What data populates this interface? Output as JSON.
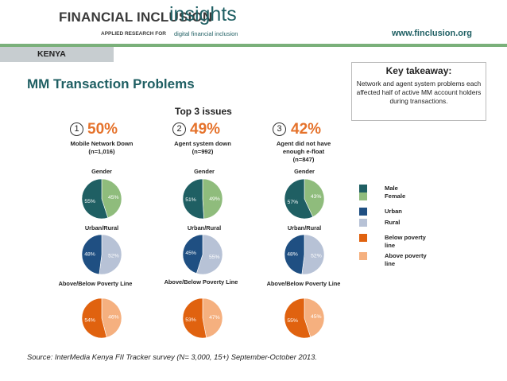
{
  "header": {
    "brand_main": "FINANCIAL INCLUSION",
    "brand_insights": "insights",
    "brand_sub1": "APPLIED RESEARCH FOR",
    "brand_sub2": "digital financial inclusion",
    "url": "www.finclusion.org"
  },
  "country": "KENYA",
  "title": "MM Transaction Problems",
  "takeaway": {
    "title": "Key takeaway:",
    "body": "Network and agent system problems each affected half of active MM account holders during transactions."
  },
  "top3_label": "Top 3 issues",
  "colors": {
    "male": "#1f5f63",
    "female": "#8fbc7c",
    "urban": "#1f4f82",
    "rural": "#b7c2d6",
    "below_poverty": "#e0620f",
    "above_poverty": "#f5b07f"
  },
  "legend": [
    {
      "label": "Male",
      "color": "#1f5f63"
    },
    {
      "label": "Female",
      "color": "#8fbc7c"
    },
    {
      "label": "Urban",
      "color": "#1f4f82"
    },
    {
      "label": "Rural",
      "color": "#b7c2d6"
    },
    {
      "label": "Below poverty line",
      "color": "#e0620f"
    },
    {
      "label": "Above poverty line",
      "color": "#f5b07f"
    }
  ],
  "chart_data": {
    "type": "pie",
    "chart_titles": {
      "gender": "Gender",
      "urban_rural": "Urban/Rural",
      "poverty": "Above/Below Poverty Line"
    },
    "issues": [
      {
        "number": "1",
        "percent": "50%",
        "label": "Mobile Network Down (n=1,016)",
        "gender": {
          "male": 55,
          "female": 45
        },
        "urban_rural": {
          "urban": 48,
          "rural": 52
        },
        "poverty": {
          "below": 54,
          "above": 46
        }
      },
      {
        "number": "2",
        "percent": "49%",
        "label": "Agent system down (n=992)",
        "gender": {
          "male": 51,
          "female": 49
        },
        "urban_rural": {
          "urban": 45,
          "rural": 55
        },
        "poverty": {
          "below": 53,
          "above": 47
        }
      },
      {
        "number": "3",
        "percent": "42%",
        "label": "Agent did not have enough e-float (n=847)",
        "gender": {
          "male": 57,
          "female": 43
        },
        "urban_rural": {
          "urban": 48,
          "rural": 52
        },
        "poverty": {
          "below": 55,
          "above": 45
        }
      }
    ]
  },
  "source": "Source: InterMedia Kenya FII Tracker survey (N= 3,000, 15+) September-October 2013."
}
